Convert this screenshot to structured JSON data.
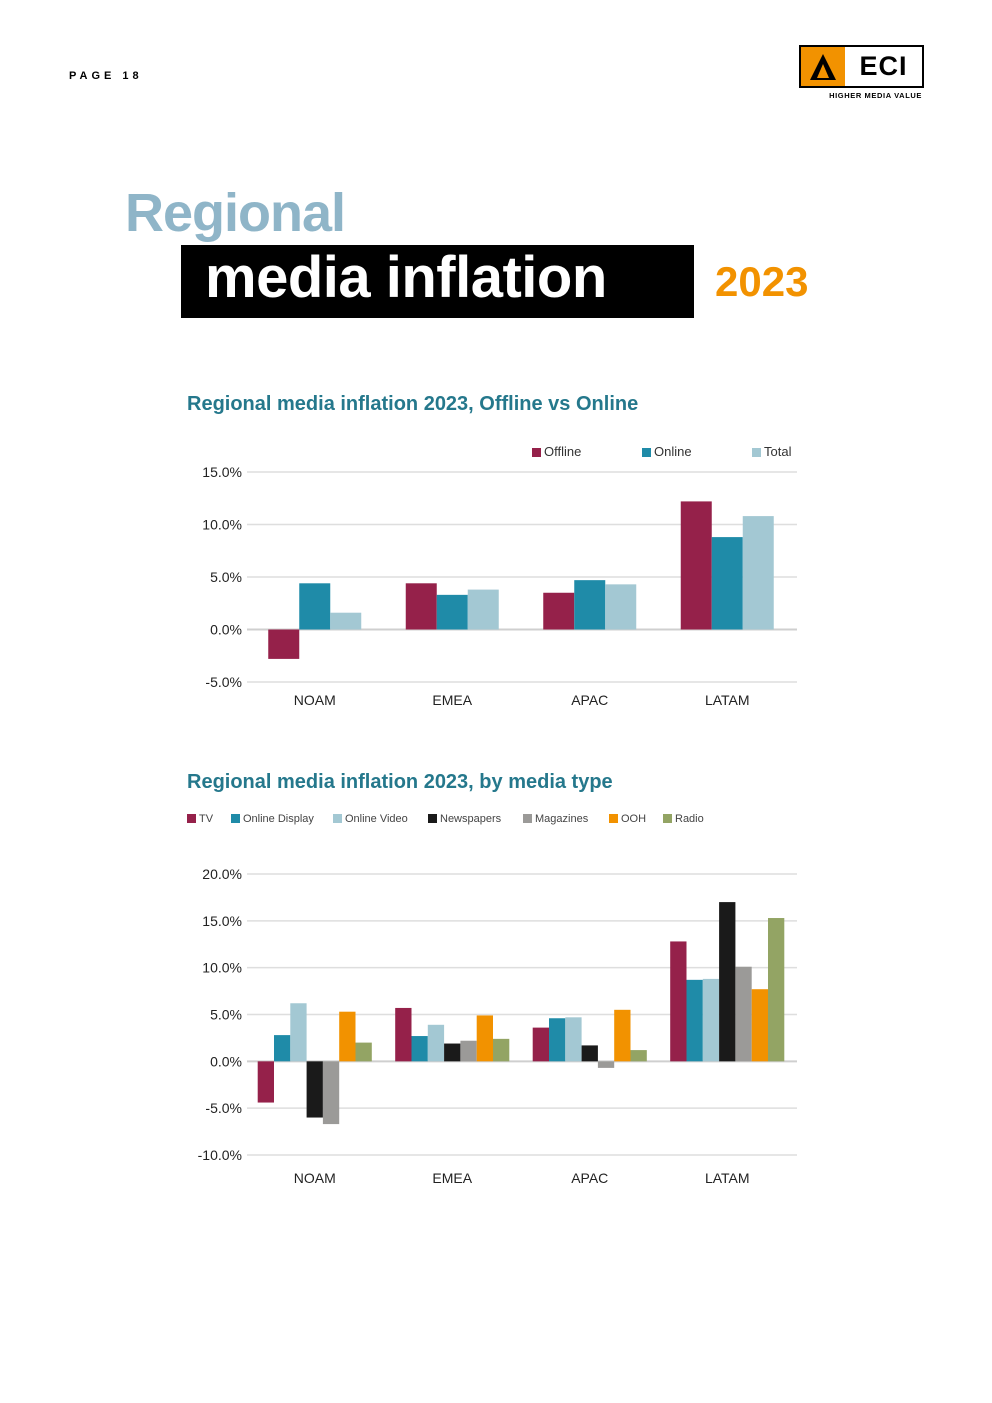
{
  "page": {
    "label": "PAGE 18"
  },
  "logo": {
    "text": "ECI",
    "tagline": "HIGHER MEDIA VALUE",
    "accent": "#f29200"
  },
  "title": {
    "line1": "Regional",
    "line2": "media inflation",
    "year": "2023"
  },
  "colors": {
    "title_light": "#8fb5c8",
    "chart_title": "#25788c",
    "orange": "#f29200"
  },
  "chart_data": [
    {
      "type": "bar",
      "title": "Regional media inflation 2023, Offline vs Online",
      "categories": [
        "NOAM",
        "EMEA",
        "APAC",
        "LATAM"
      ],
      "series": [
        {
          "name": "Offline",
          "color": "#95214a",
          "values": [
            -2.8,
            4.4,
            3.5,
            12.2
          ]
        },
        {
          "name": "Online",
          "color": "#1f8ba8",
          "values": [
            4.4,
            3.3,
            4.7,
            8.8
          ]
        },
        {
          "name": "Total",
          "color": "#a3c8d3",
          "values": [
            1.6,
            3.8,
            4.3,
            10.8
          ]
        }
      ],
      "ylim": [
        -5,
        15
      ],
      "yticks": [
        15,
        10,
        5,
        0,
        -5
      ],
      "ytick_labels": [
        "15.0%",
        "10.0%",
        "5.0%",
        "0.0%",
        "-5.0%"
      ],
      "legend": "top-right",
      "grid": true
    },
    {
      "type": "bar",
      "title": "Regional media inflation 2023, by media type",
      "categories": [
        "NOAM",
        "EMEA",
        "APAC",
        "LATAM"
      ],
      "series": [
        {
          "name": "TV",
          "color": "#95214a",
          "values": [
            -4.4,
            5.7,
            3.6,
            12.8
          ]
        },
        {
          "name": "Online Display",
          "color": "#1f8ba8",
          "values": [
            2.8,
            2.7,
            4.6,
            8.7
          ]
        },
        {
          "name": "Online Video",
          "color": "#a3c8d3",
          "values": [
            6.2,
            3.9,
            4.7,
            8.8
          ]
        },
        {
          "name": "Newspapers",
          "color": "#1a1a1a",
          "values": [
            -6.0,
            1.9,
            1.7,
            17.0
          ]
        },
        {
          "name": "Magazines",
          "color": "#9b9a98",
          "values": [
            -6.7,
            2.2,
            -0.7,
            10.1
          ]
        },
        {
          "name": "OOH",
          "color": "#f29200",
          "values": [
            5.3,
            4.9,
            5.5,
            7.7
          ]
        },
        {
          "name": "Radio",
          "color": "#93a464",
          "values": [
            2.0,
            2.4,
            1.2,
            15.3
          ]
        }
      ],
      "ylim": [
        -10,
        20
      ],
      "yticks": [
        20,
        15,
        10,
        5,
        0,
        -5,
        -10
      ],
      "ytick_labels": [
        "20.0%",
        "15.0%",
        "10.0%",
        "5.0%",
        "0.0%",
        "-5.0%",
        "-10.0%"
      ],
      "legend": "top-left",
      "grid": true
    }
  ]
}
